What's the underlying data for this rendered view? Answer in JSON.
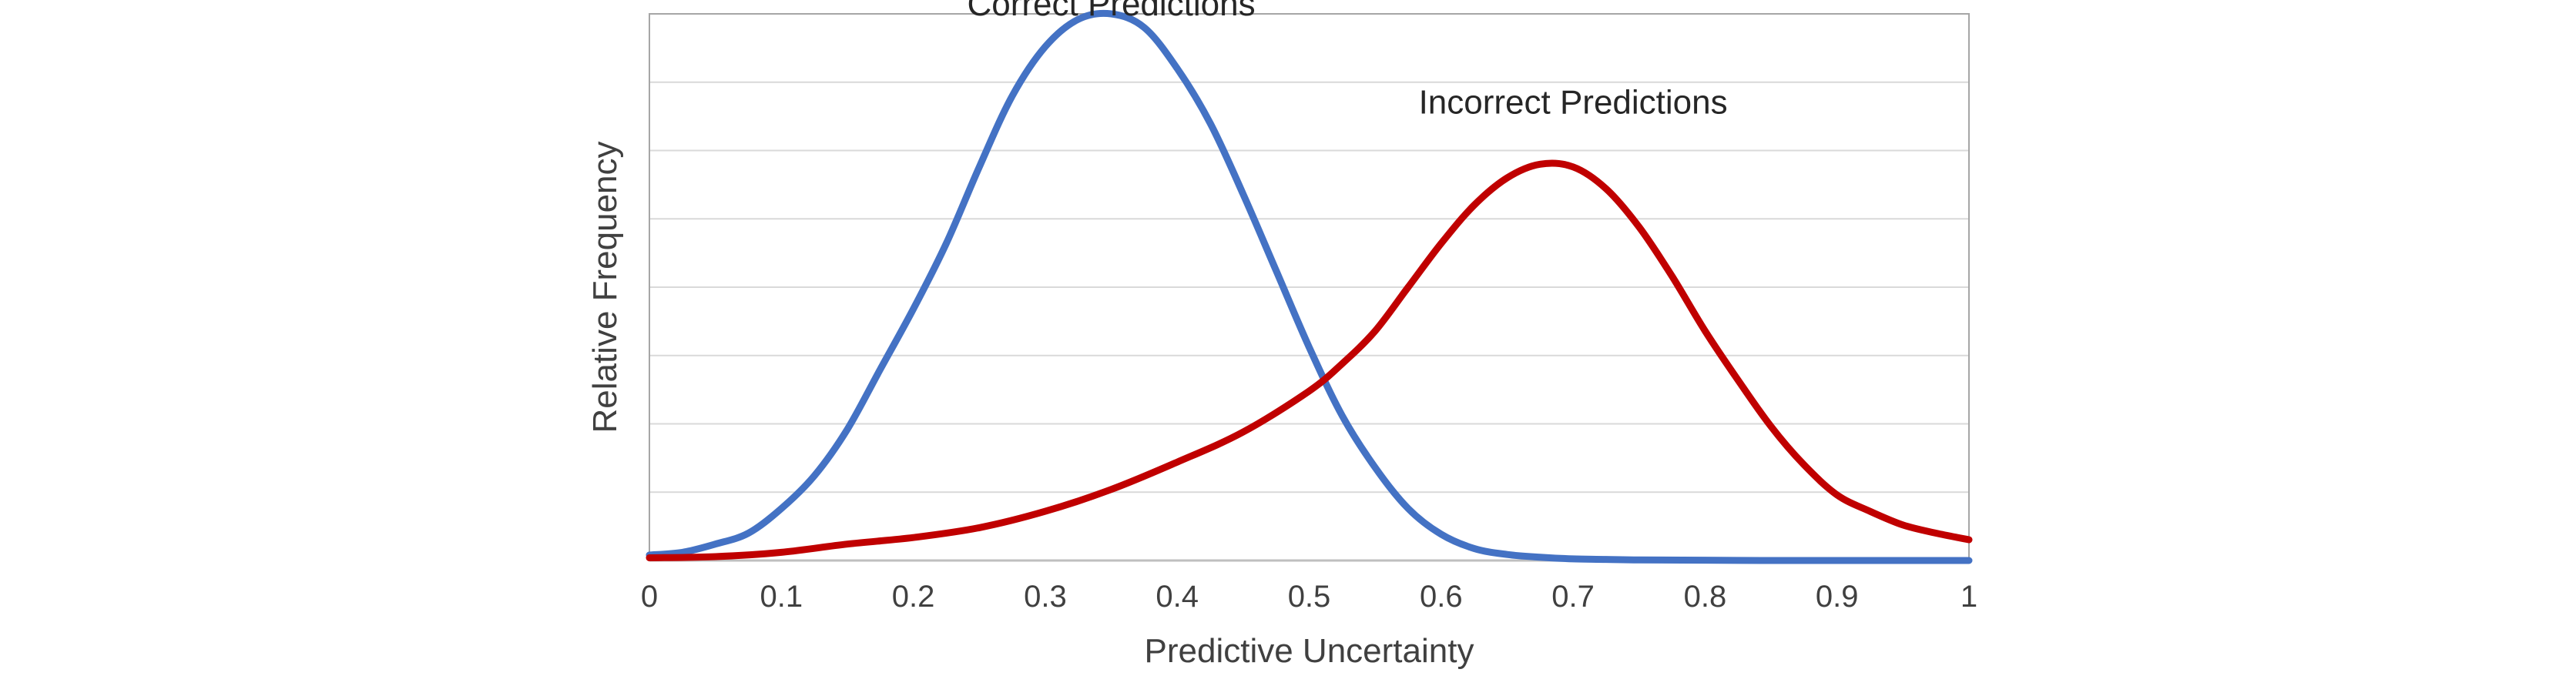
{
  "chart_data": {
    "type": "line",
    "title": "",
    "xlabel": "Predictive Uncertainty",
    "ylabel": "Relative Frequency",
    "xlim": [
      0,
      1
    ],
    "ylim": [
      0,
      1
    ],
    "x_ticks": [
      "0",
      "0.1",
      "0.2",
      "0.3",
      "0.4",
      "0.5",
      "0.6",
      "0.7",
      "0.8",
      "0.9",
      "1"
    ],
    "y_tick_labels_shown": false,
    "y_gridlines": [
      0.125,
      0.25,
      0.375,
      0.5,
      0.625,
      0.75,
      0.875
    ],
    "grid": true,
    "legend": "none",
    "colors": {
      "Correct Predictions": "#4472C4",
      "Incorrect Predictions": "#C00000",
      "gridline": "#D9D9D9",
      "frame": "#A6A6A6"
    },
    "annotations": [
      {
        "text": "Correct Predictions",
        "x": 0.35,
        "y": 1.02
      },
      {
        "text": "Incorrect Predictions",
        "x": 0.7,
        "y": 0.84
      }
    ],
    "series": [
      {
        "name": "Correct Predictions",
        "x": [
          0.0,
          0.025,
          0.05,
          0.075,
          0.1,
          0.125,
          0.15,
          0.175,
          0.2,
          0.225,
          0.25,
          0.275,
          0.3,
          0.325,
          0.35,
          0.375,
          0.4,
          0.425,
          0.45,
          0.475,
          0.5,
          0.525,
          0.55,
          0.575,
          0.6,
          0.625,
          0.65,
          0.675,
          0.7,
          0.725,
          0.75,
          0.8,
          0.85,
          0.9,
          0.95,
          1.0
        ],
        "y": [
          0.01,
          0.015,
          0.03,
          0.05,
          0.095,
          0.155,
          0.24,
          0.35,
          0.46,
          0.58,
          0.72,
          0.85,
          0.94,
          0.99,
          1.0,
          0.975,
          0.9,
          0.8,
          0.67,
          0.53,
          0.39,
          0.265,
          0.17,
          0.095,
          0.048,
          0.022,
          0.011,
          0.006,
          0.003,
          0.002,
          0.001,
          0.0005,
          0.0,
          0.0,
          0.0,
          0.0
        ]
      },
      {
        "name": "Incorrect Predictions",
        "x": [
          0.0,
          0.05,
          0.1,
          0.15,
          0.2,
          0.25,
          0.3,
          0.35,
          0.4,
          0.45,
          0.5,
          0.525,
          0.55,
          0.575,
          0.6,
          0.625,
          0.65,
          0.675,
          0.7,
          0.725,
          0.75,
          0.775,
          0.8,
          0.825,
          0.85,
          0.875,
          0.9,
          0.925,
          0.95,
          0.975,
          1.0
        ],
        "y": [
          0.005,
          0.007,
          0.015,
          0.03,
          0.042,
          0.06,
          0.09,
          0.13,
          0.18,
          0.235,
          0.31,
          0.36,
          0.42,
          0.5,
          0.58,
          0.65,
          0.7,
          0.725,
          0.72,
          0.68,
          0.61,
          0.52,
          0.42,
          0.33,
          0.245,
          0.175,
          0.12,
          0.09,
          0.065,
          0.05,
          0.038
        ]
      }
    ]
  }
}
